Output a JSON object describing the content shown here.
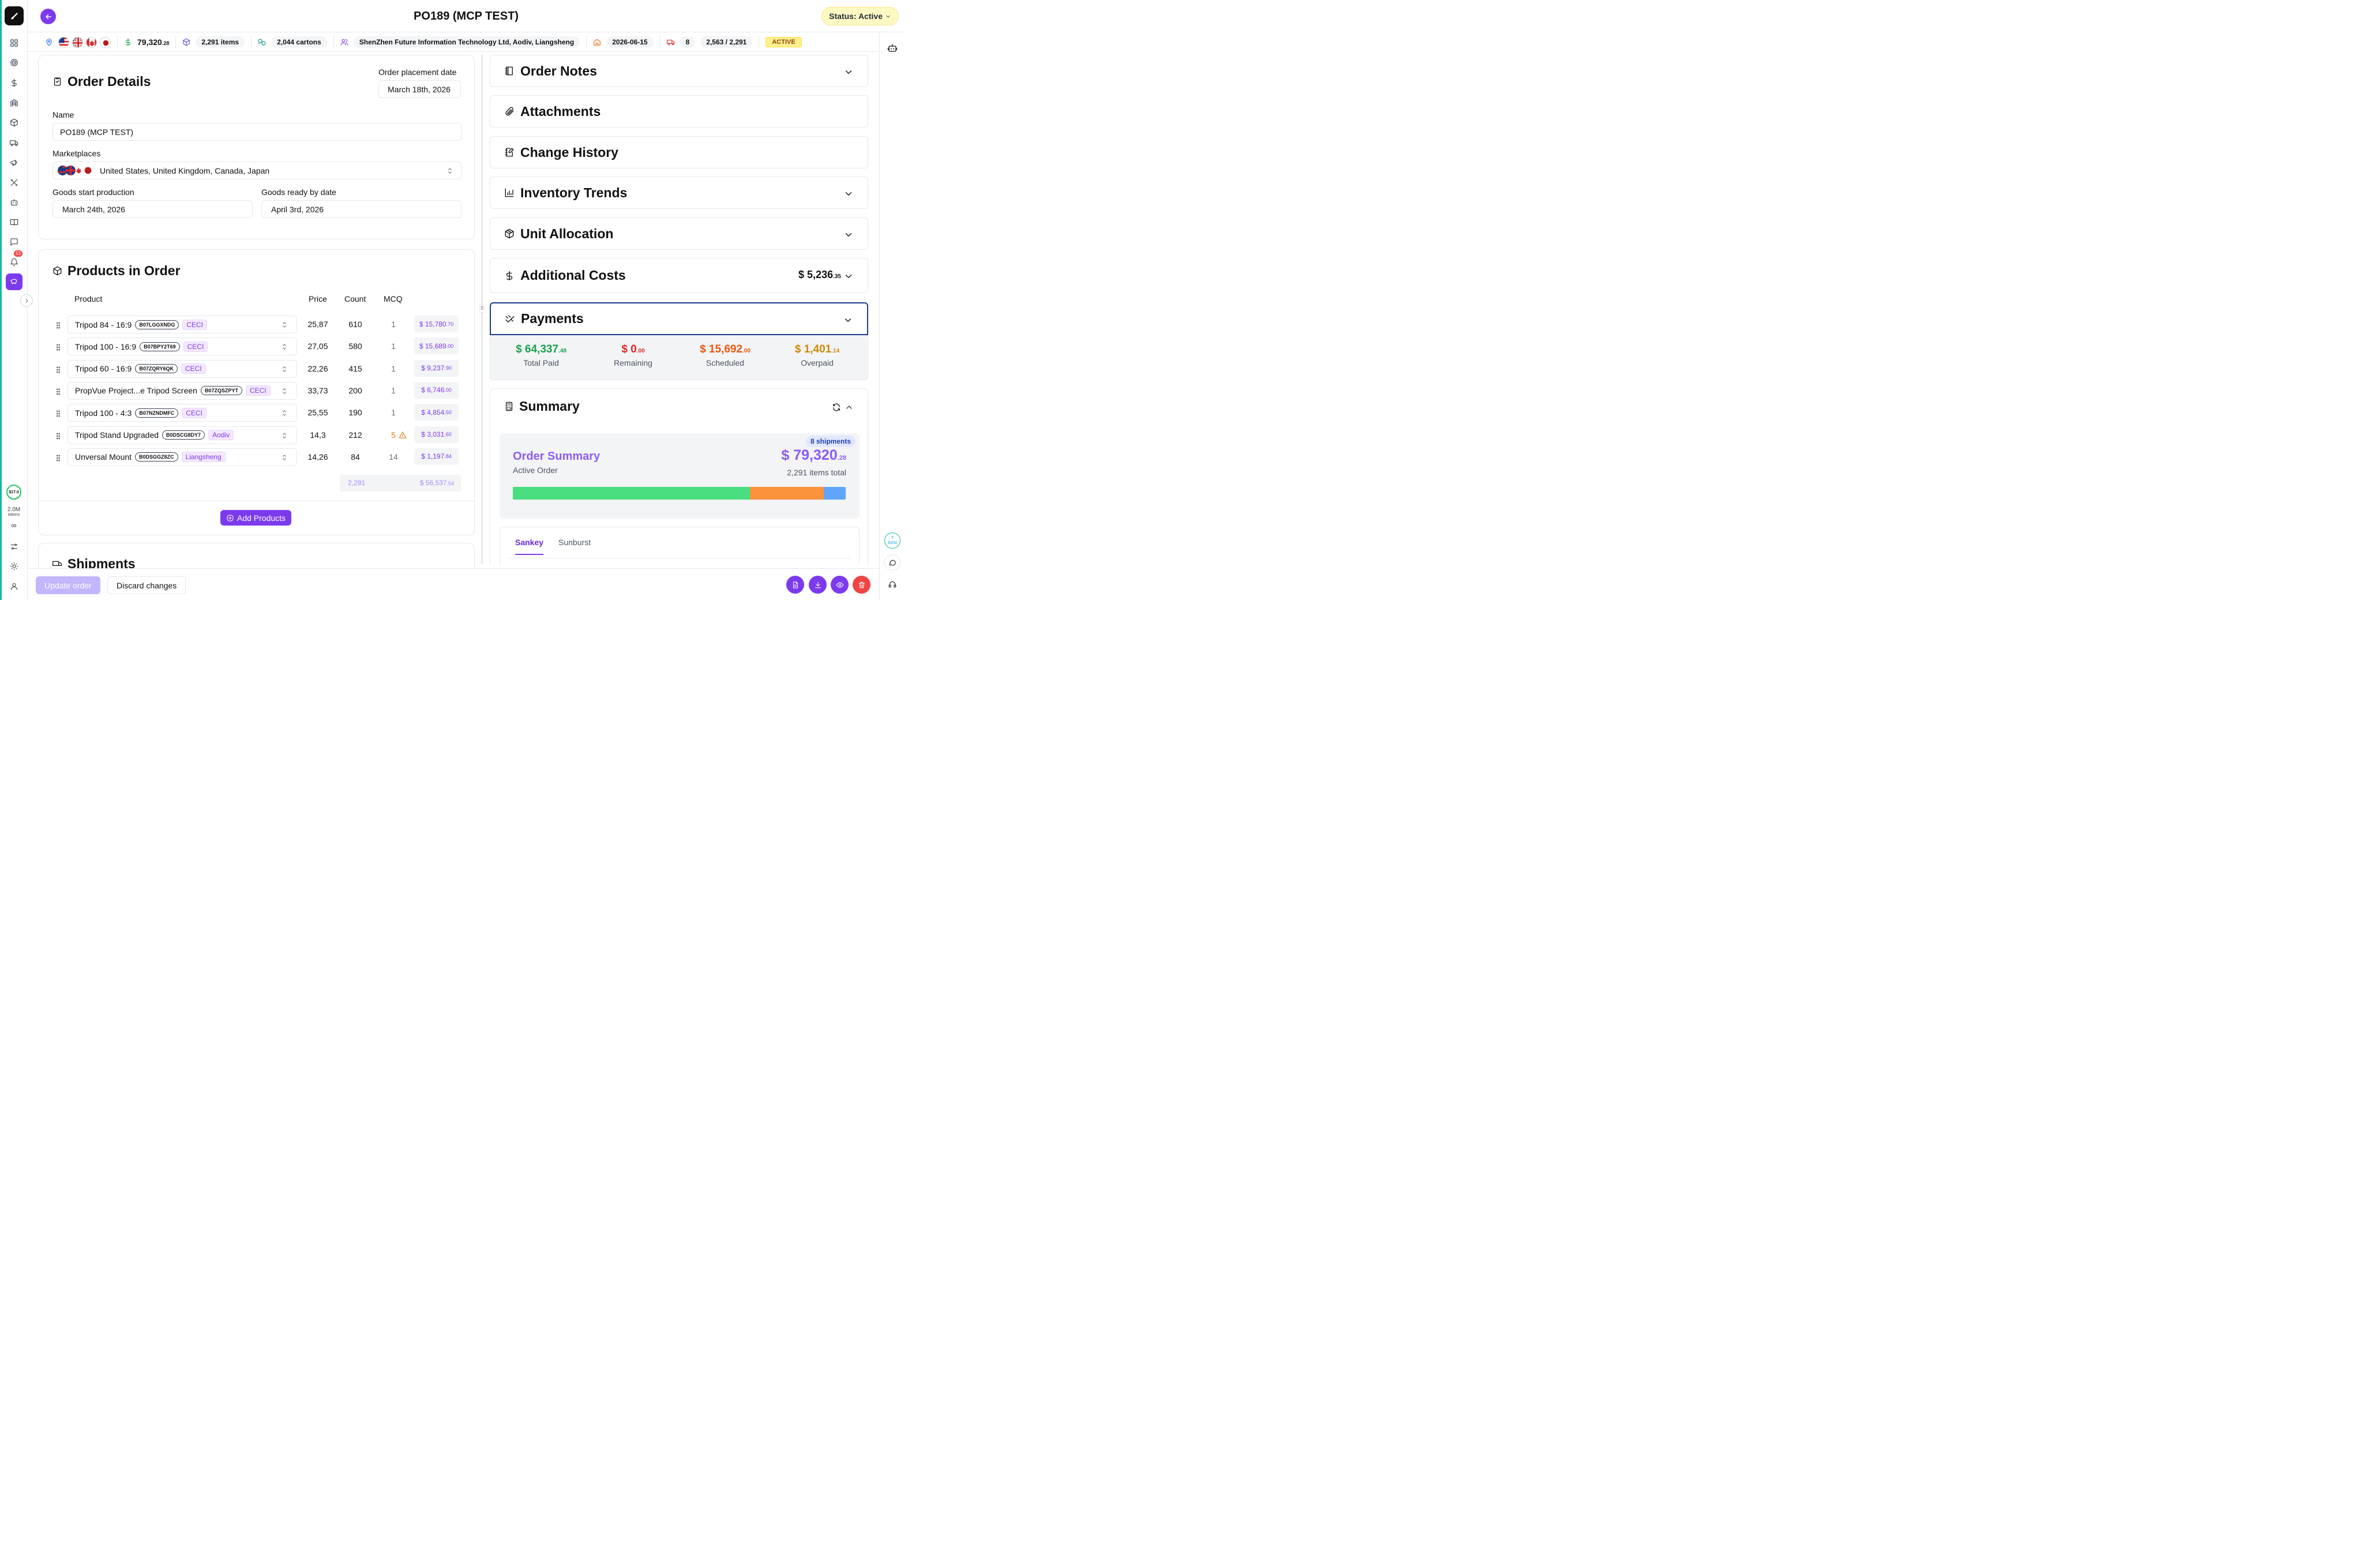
{
  "header": {
    "title": "PO189 (MCP TEST)",
    "status_label": "Status: Active"
  },
  "info_bar": {
    "total": "79,320",
    "total_cents": ".28",
    "items": "2,291 items",
    "cartons": "2,044 cartons",
    "suppliers": "ShenZhen Future Information Technology Ltd, Aodiv, Liangsheng",
    "date": "2026-06-15",
    "shipments": "8",
    "progress": "2,563 / 2,291",
    "badge": "ACTIVE",
    "flags": [
      "us",
      "uk",
      "ca",
      "jp"
    ]
  },
  "rail": {
    "notification_count": "53",
    "credit": "$17.0",
    "tokens_value": "2.0M",
    "tokens_label": "tokens",
    "infinity": "∞"
  },
  "order_details": {
    "title": "Order Details",
    "placement_label": "Order placement date",
    "placement_value": "March 18th, 2026",
    "name_label": "Name",
    "name_value": "PO189 (MCP TEST)",
    "marketplaces_label": "Marketplaces",
    "marketplaces_value": "United States, United Kingdom, Canada, Japan",
    "start_label": "Goods start production",
    "start_value": "March 24th, 2026",
    "ready_label": "Goods ready by date",
    "ready_value": "April 3rd, 2026"
  },
  "products": {
    "title": "Products in Order",
    "columns": {
      "product": "Product",
      "price": "Price",
      "count": "Count",
      "mcq": "MCQ"
    },
    "rows": [
      {
        "name": "Tripod 84 - 16:9",
        "sku": "B07LGGXNDG",
        "supplier": "CECI",
        "price": "25,87",
        "count": "610",
        "mcq": "1",
        "total": "$ 15,780",
        "cents": ".70",
        "warn": false
      },
      {
        "name": "Tripod 100 - 16:9",
        "sku": "B07BPY2T69",
        "supplier": "CECI",
        "price": "27,05",
        "count": "580",
        "mcq": "1",
        "total": "$ 15,689",
        "cents": ".00",
        "warn": false
      },
      {
        "name": "Tripod 60 - 16:9",
        "sku": "B07ZQRY6QK",
        "supplier": "CECI",
        "price": "22,26",
        "count": "415",
        "mcq": "1",
        "total": "$ 9,237",
        "cents": ".90",
        "warn": false
      },
      {
        "name": "PropVue Project...e Tripod Screen",
        "sku": "B07ZQSZPYT",
        "supplier": "CECI",
        "price": "33,73",
        "count": "200",
        "mcq": "1",
        "total": "$ 6,746",
        "cents": ".00",
        "warn": false
      },
      {
        "name": "Tripod 100 - 4:3",
        "sku": "B07NZNDMFC",
        "supplier": "CECI",
        "price": "25,55",
        "count": "190",
        "mcq": "1",
        "total": "$ 4,854",
        "cents": ".50",
        "warn": false
      },
      {
        "name": "Tripod Stand Upgraded",
        "sku": "B0DSCG8DY7",
        "supplier": "Aodiv",
        "price": "14,3",
        "count": "212",
        "mcq": "5",
        "total": "$ 3,031",
        "cents": ".60",
        "warn": true
      },
      {
        "name": "Unversal Mount",
        "sku": "B0DSGGZ8ZC",
        "supplier": "Liangsheng",
        "price": "14,26",
        "count": "84",
        "mcq": "14",
        "total": "$ 1,197",
        "cents": ".84",
        "warn": false
      }
    ],
    "total_count": "2,291",
    "total_value": "$ 56,537",
    "total_cents": ".54",
    "add_label": "Add Products"
  },
  "shipments_title": "Shipments",
  "panels": {
    "order_notes": "Order Notes",
    "attachments": "Attachments",
    "change_history": "Change History",
    "inventory_trends": "Inventory Trends",
    "unit_allocation": "Unit Allocation",
    "additional_costs": "Additional Costs",
    "additional_costs_value": "$ 5,236",
    "additional_costs_cents": ".35",
    "payments": "Payments"
  },
  "payments": [
    {
      "value": "$ 64,337",
      "cents": ".48",
      "label": "Total Paid",
      "color": "#16a34a"
    },
    {
      "value": "$ 0",
      "cents": ".00",
      "label": "Remaining",
      "color": "#dc2626"
    },
    {
      "value": "$ 15,692",
      "cents": ".00",
      "label": "Scheduled",
      "color": "#ea580c"
    },
    {
      "value": "$ 1,401",
      "cents": ".14",
      "label": "Overpaid",
      "color": "#ca8a04"
    }
  ],
  "summary": {
    "title": "Summary",
    "shipments_badge": "8 shipments",
    "heading": "Order Summary",
    "subheading": "Active Order",
    "total": "$ 79,320",
    "total_cents": ".28",
    "items_total": "2,291 items total",
    "bar": [
      {
        "color": "#4ade80",
        "fraction": 0.713
      },
      {
        "color": "#fb923c",
        "fraction": 0.222
      },
      {
        "color": "#60a5fa",
        "fraction": 0.065
      }
    ],
    "tabs": [
      "Sankey",
      "Sunburst"
    ]
  },
  "footer": {
    "update_label": "Update order",
    "discard_label": "Discard changes"
  },
  "timer": {
    "top": "T",
    "value": "820d"
  }
}
